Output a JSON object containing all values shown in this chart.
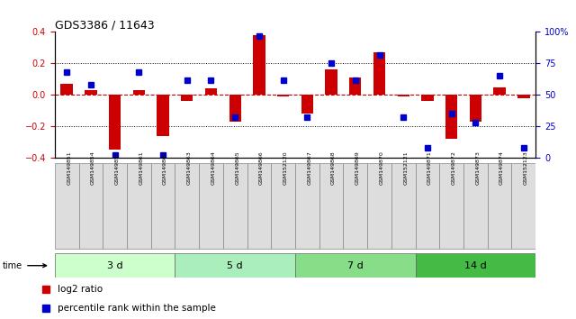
{
  "title": "GDS3386 / 11643",
  "samples": [
    "GSM149851",
    "GSM149854",
    "GSM149855",
    "GSM149861",
    "GSM149862",
    "GSM149863",
    "GSM149864",
    "GSM149865",
    "GSM149866",
    "GSM152120",
    "GSM149867",
    "GSM149868",
    "GSM149869",
    "GSM149870",
    "GSM152121",
    "GSM149871",
    "GSM149872",
    "GSM149873",
    "GSM149874",
    "GSM152123"
  ],
  "log2_ratio": [
    0.07,
    0.03,
    -0.35,
    0.03,
    -0.26,
    -0.04,
    0.04,
    -0.17,
    0.38,
    -0.01,
    -0.12,
    0.16,
    0.11,
    0.27,
    -0.01,
    -0.04,
    -0.28,
    -0.17,
    0.05,
    -0.02
  ],
  "percentile_rank": [
    68,
    58,
    2,
    68,
    2,
    62,
    62,
    32,
    97,
    62,
    32,
    75,
    62,
    82,
    32,
    8,
    35,
    28,
    65,
    8
  ],
  "groups": [
    {
      "label": "3 d",
      "start": 0,
      "end": 5,
      "color": "#ccffcc"
    },
    {
      "label": "5 d",
      "start": 5,
      "end": 10,
      "color": "#aaeebb"
    },
    {
      "label": "7 d",
      "start": 10,
      "end": 15,
      "color": "#88dd88"
    },
    {
      "label": "14 d",
      "start": 15,
      "end": 20,
      "color": "#44bb44"
    }
  ],
  "bar_color": "#cc0000",
  "dot_color": "#0000cc",
  "ylim_left": [
    -0.4,
    0.4
  ],
  "ylim_right": [
    0,
    100
  ],
  "yticks_left": [
    -0.4,
    -0.2,
    0.0,
    0.2,
    0.4
  ],
  "yticks_right": [
    0,
    25,
    50,
    75,
    100
  ],
  "hline_color": "#cc0000",
  "grid_color": "black",
  "bg_color": "white",
  "tick_label_color_left": "#cc0000",
  "tick_label_color_right": "#0000cc"
}
